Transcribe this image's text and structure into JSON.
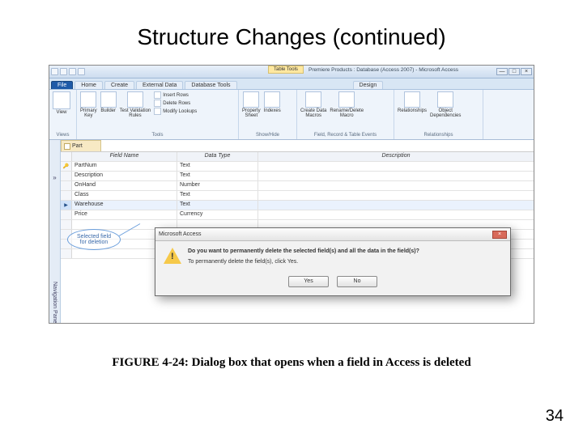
{
  "slide": {
    "title": "Structure Changes (continued)",
    "caption": "FIGURE 4-24: Dialog box that opens when a field in Access is deleted",
    "page_number": "34"
  },
  "titlebar": {
    "table_tools": "Table Tools",
    "app_title": "Premiere Products : Database (Access 2007) - Microsoft Access",
    "min": "—",
    "max": "□",
    "close": "×"
  },
  "ribbon_tabs": {
    "file": "File",
    "home": "Home",
    "create": "Create",
    "external": "External Data",
    "dbtools": "Database Tools",
    "design": "Design"
  },
  "ribbon": {
    "views": {
      "view": "View",
      "label": "Views"
    },
    "tools": {
      "primary_key": "Primary\nKey",
      "builder": "Builder",
      "test_rules": "Test Validation\nRules",
      "insert_rows": "Insert Rows",
      "delete_rows": "Delete Rows",
      "modify_lookups": "Modify Lookups",
      "label": "Tools"
    },
    "showhide": {
      "property": "Property\nSheet",
      "indexes": "Indexes",
      "label": "Show/Hide"
    },
    "events": {
      "create_macros": "Create Data\nMacros",
      "rename_delete": "Rename/Delete\nMacro",
      "label": "Field, Record & Table Events"
    },
    "relationships": {
      "relationships": "Relationships",
      "dependencies": "Object\nDependencies",
      "label": "Relationships"
    }
  },
  "navpane": {
    "label": "Navigation Pane",
    "chev": "»"
  },
  "table": {
    "tab_name": "Part",
    "headers": {
      "field_name": "Field Name",
      "data_type": "Data Type",
      "description": "Description"
    },
    "rows": [
      {
        "name": "PartNum",
        "type": "Text"
      },
      {
        "name": "Description",
        "type": "Text"
      },
      {
        "name": "OnHand",
        "type": "Number"
      },
      {
        "name": "Class",
        "type": "Text"
      },
      {
        "name": "Warehouse",
        "type": "Text",
        "deleted": true
      },
      {
        "name": "Price",
        "type": "Currency"
      }
    ]
  },
  "callout": {
    "text": "Selected field\nfor deletion"
  },
  "dialog": {
    "title": "Microsoft Access",
    "line1": "Do you want to permanently delete the selected field(s) and all the data in the field(s)?",
    "line2": "To permanently delete the field(s), click Yes.",
    "yes": "Yes",
    "no": "No",
    "close": "×"
  }
}
